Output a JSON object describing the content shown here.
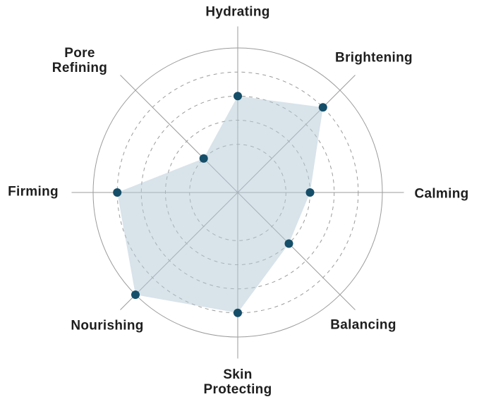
{
  "chart_data": {
    "type": "radar",
    "title": "",
    "categories": [
      "Hydrating",
      "Brightening",
      "Calming",
      "Balancing",
      "Skin Protecting",
      "Nourishing",
      "Firming",
      "Pore Refining"
    ],
    "category_display": [
      "Hydrating",
      "Brightening",
      "Calming",
      "Balancing",
      "Skin\nProtecting",
      "Nourishing",
      "Firming",
      "Pore\nRefining"
    ],
    "values": [
      4,
      5,
      3,
      3,
      5,
      6,
      5,
      2
    ],
    "axis_order": "clockwise from top",
    "scale": {
      "min": 0,
      "max": 6,
      "dashed_ring_values": [
        2,
        3,
        4,
        5
      ],
      "outer_ring_value": 6,
      "grid": "concentric circles, dashed inner rings, solid outer ring, 8 radial spokes"
    },
    "legend": null,
    "colors": {
      "point": "#154e69",
      "fill": "#b1c8d5",
      "fill_opacity": 0.5,
      "grid": "#9b9b9b",
      "label": "#1e1e1e",
      "background": "#ffffff"
    }
  }
}
